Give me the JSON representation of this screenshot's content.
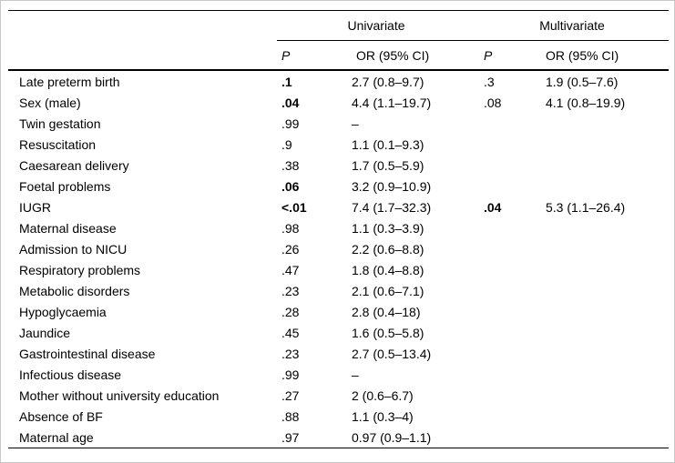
{
  "table": {
    "groups": [
      {
        "label": "Univariate"
      },
      {
        "label": "Multivariate"
      }
    ],
    "subheader": {
      "uni_p": "P",
      "uni_or": "OR (95% CI)",
      "multi_p": "P",
      "multi_or": "OR (95% CI)"
    },
    "rows": [
      {
        "label": "Late preterm birth",
        "uni_p": ".1",
        "uni_p_bold": true,
        "uni_or": "2.7 (0.8–9.7)",
        "multi_p": ".3",
        "multi_p_bold": false,
        "multi_or": "1.9 (0.5–7.6)"
      },
      {
        "label": "Sex (male)",
        "uni_p": ".04",
        "uni_p_bold": true,
        "uni_or": "4.4 (1.1–19.7)",
        "multi_p": ".08",
        "multi_p_bold": false,
        "multi_or": "4.1 (0.8–19.9)"
      },
      {
        "label": "Twin gestation",
        "uni_p": ".99",
        "uni_p_bold": false,
        "uni_or": "–",
        "multi_p": "",
        "multi_p_bold": false,
        "multi_or": ""
      },
      {
        "label": "Resuscitation",
        "uni_p": ".9",
        "uni_p_bold": false,
        "uni_or": "1.1 (0.1–9.3)",
        "multi_p": "",
        "multi_p_bold": false,
        "multi_or": ""
      },
      {
        "label": "Caesarean delivery",
        "uni_p": ".38",
        "uni_p_bold": false,
        "uni_or": "1.7 (0.5–5.9)",
        "multi_p": "",
        "multi_p_bold": false,
        "multi_or": ""
      },
      {
        "label": "Foetal problems",
        "uni_p": ".06",
        "uni_p_bold": true,
        "uni_or": "3.2 (0.9–10.9)",
        "multi_p": "",
        "multi_p_bold": false,
        "multi_or": ""
      },
      {
        "label": "IUGR",
        "uni_p": "<.01",
        "uni_p_bold": true,
        "uni_or": "7.4 (1.7–32.3)",
        "multi_p": ".04",
        "multi_p_bold": true,
        "multi_or": "5.3 (1.1–26.4)"
      },
      {
        "label": "Maternal disease",
        "uni_p": ".98",
        "uni_p_bold": false,
        "uni_or": "1.1 (0.3–3.9)",
        "multi_p": "",
        "multi_p_bold": false,
        "multi_or": ""
      },
      {
        "label": "Admission to NICU",
        "uni_p": ".26",
        "uni_p_bold": false,
        "uni_or": "2.2 (0.6–8.8)",
        "multi_p": "",
        "multi_p_bold": false,
        "multi_or": ""
      },
      {
        "label": "Respiratory problems",
        "uni_p": ".47",
        "uni_p_bold": false,
        "uni_or": "1.8 (0.4–8.8)",
        "multi_p": "",
        "multi_p_bold": false,
        "multi_or": ""
      },
      {
        "label": "Metabolic disorders",
        "uni_p": ".23",
        "uni_p_bold": false,
        "uni_or": "2.1 (0.6–7.1)",
        "multi_p": "",
        "multi_p_bold": false,
        "multi_or": ""
      },
      {
        "label": "Hypoglycaemia",
        "uni_p": ".28",
        "uni_p_bold": false,
        "uni_or": "2.8 (0.4–18)",
        "multi_p": "",
        "multi_p_bold": false,
        "multi_or": ""
      },
      {
        "label": "Jaundice",
        "uni_p": ".45",
        "uni_p_bold": false,
        "uni_or": "1.6 (0.5–5.8)",
        "multi_p": "",
        "multi_p_bold": false,
        "multi_or": ""
      },
      {
        "label": "Gastrointestinal disease",
        "uni_p": ".23",
        "uni_p_bold": false,
        "uni_or": "2.7 (0.5–13.4)",
        "multi_p": "",
        "multi_p_bold": false,
        "multi_or": ""
      },
      {
        "label": "Infectious disease",
        "uni_p": ".99",
        "uni_p_bold": false,
        "uni_or": "–",
        "multi_p": "",
        "multi_p_bold": false,
        "multi_or": ""
      },
      {
        "label": "Mother without university education",
        "uni_p": ".27",
        "uni_p_bold": false,
        "uni_or": "2 (0.6–6.7)",
        "multi_p": "",
        "multi_p_bold": false,
        "multi_or": ""
      },
      {
        "label": "Absence of BF",
        "uni_p": ".88",
        "uni_p_bold": false,
        "uni_or": "1.1 (0.3–4)",
        "multi_p": "",
        "multi_p_bold": false,
        "multi_or": ""
      },
      {
        "label": "Maternal age",
        "uni_p": ".97",
        "uni_p_bold": false,
        "uni_or": "0.97 (0.9–1.1)",
        "multi_p": "",
        "multi_p_bold": false,
        "multi_or": ""
      }
    ]
  }
}
